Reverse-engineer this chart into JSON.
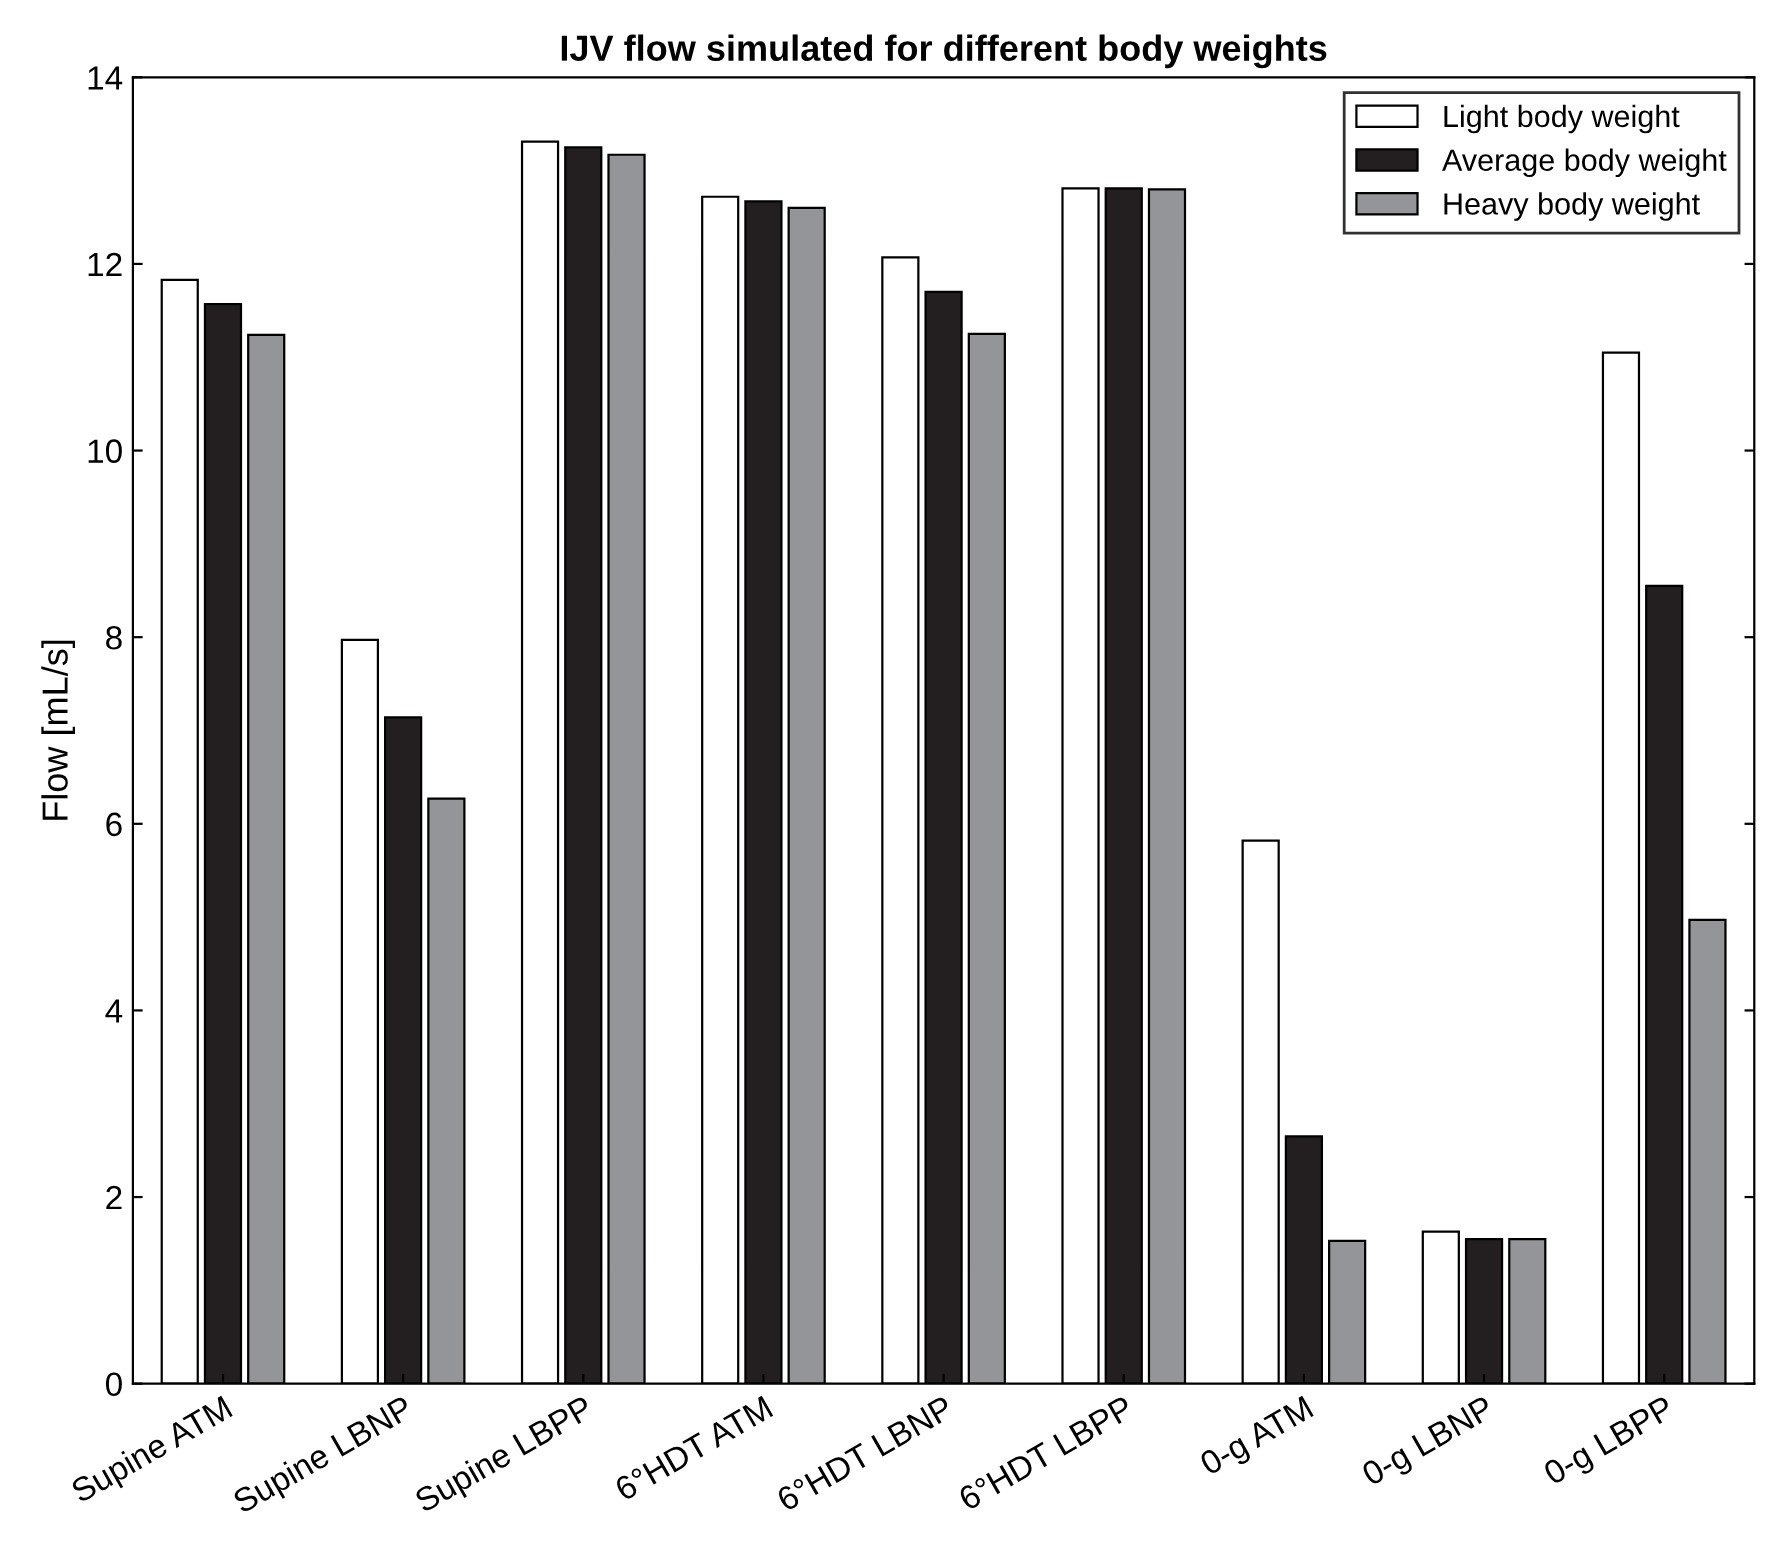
{
  "chart_data": {
    "type": "bar",
    "title": "IJV flow simulated for different body weights",
    "ylabel": "Flow [mL/s]",
    "categories": [
      "Supine ATM",
      "Supine LBNP",
      "Supine LBPP",
      "6°HDT ATM",
      "6°HDT LBNP",
      "6°HDT LBPP",
      "0-g ATM",
      "0-g LBNP",
      "0-g LBPP"
    ],
    "series": [
      {
        "name": "Light body weight",
        "color": "#ffffff",
        "values": [
          11.83,
          7.97,
          13.31,
          12.72,
          12.07,
          12.81,
          5.82,
          1.63,
          11.05
        ]
      },
      {
        "name": "Average body weight",
        "color": "#231f20",
        "values": [
          11.57,
          7.14,
          13.25,
          12.67,
          11.7,
          12.81,
          2.65,
          1.55,
          8.55
        ]
      },
      {
        "name": "Heavy body weight",
        "color": "#939598",
        "values": [
          11.24,
          6.27,
          13.17,
          12.6,
          11.25,
          12.8,
          1.53,
          1.55,
          4.97
        ]
      }
    ],
    "ylim": [
      0,
      14
    ],
    "yticks": [
      0,
      2,
      4,
      6,
      8,
      10,
      12,
      14
    ],
    "grid": false,
    "legend": "top right"
  }
}
